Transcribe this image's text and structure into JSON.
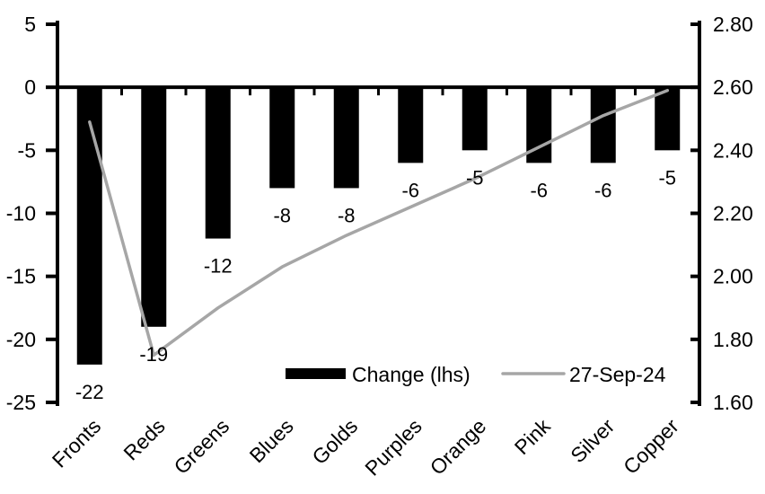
{
  "chart_data": {
    "type": "bar+line",
    "title": "",
    "categories": [
      "Fronts",
      "Reds",
      "Greens",
      "Blues",
      "Golds",
      "Purples",
      "Orange",
      "Pink",
      "Silver",
      "Copper"
    ],
    "series": [
      {
        "name": "Change (lhs)",
        "type": "bar",
        "axis": "left",
        "color": "#000000",
        "values": [
          -22,
          -19,
          -12,
          -8,
          -8,
          -6,
          -5,
          -6,
          -6,
          -5
        ],
        "data_labels": [
          "-22",
          "-19",
          "-12",
          "-8",
          "-8",
          "-6",
          "-5",
          "-6",
          "-6",
          "-5"
        ]
      },
      {
        "name": "27-Sep-24",
        "type": "line",
        "axis": "right",
        "color": "#a6a6a6",
        "values": [
          2.49,
          1.75,
          1.9,
          2.03,
          2.13,
          2.22,
          2.31,
          2.41,
          2.51,
          2.59
        ]
      }
    ],
    "left_axis": {
      "min": -25,
      "max": 5,
      "step": 5,
      "tick_labels": [
        "5",
        "0",
        "-5",
        "-10",
        "-15",
        "-20",
        "-25"
      ]
    },
    "right_axis": {
      "min": 1.6,
      "max": 2.8,
      "step": 0.2,
      "tick_labels": [
        "2.80",
        "2.60",
        "2.40",
        "2.20",
        "2.00",
        "1.80",
        "1.60"
      ]
    },
    "legend": {
      "position": "bottom-center-inside",
      "items": [
        {
          "label": "Change (lhs)",
          "swatch": "bar",
          "color": "#000000"
        },
        {
          "label": "27-Sep-24",
          "swatch": "line",
          "color": "#a6a6a6"
        }
      ]
    },
    "grid": false,
    "category_label_rotation_deg": -45
  },
  "colors": {
    "background": "#ffffff",
    "bar": "#000000",
    "line": "#a6a6a6",
    "axis": "#000000",
    "text": "#000000"
  }
}
